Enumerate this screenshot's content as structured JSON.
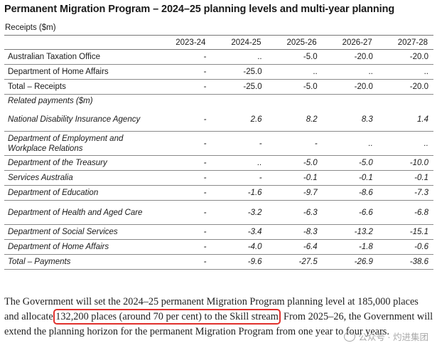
{
  "title": "Permanent Migration Program – 2024–25 planning levels and multi-year planning",
  "receipts_label": "Receipts ($m)",
  "columns": [
    "",
    "2023-24",
    "2024-25",
    "2025-26",
    "2026-27",
    "2027-28"
  ],
  "rows": [
    {
      "label": "Australian Taxation Office",
      "values": [
        "-",
        "..",
        "-5.0",
        "-20.0",
        "-20.0"
      ],
      "style": "single"
    },
    {
      "label": "Department of Home Affairs",
      "values": [
        "-",
        "-25.0",
        "..",
        "..",
        ".."
      ],
      "style": "single"
    },
    {
      "label": "Total – Receipts",
      "values": [
        "-",
        "-25.0",
        "-5.0",
        "-20.0",
        "-20.0"
      ],
      "style": "single"
    },
    {
      "label": "Related payments ($m)",
      "values": [
        "",
        "",
        "",
        "",
        ""
      ],
      "style": "sub italic"
    },
    {
      "label": "National Disability Insurance Agency",
      "values": [
        "-",
        "2.6",
        "8.2",
        "8.3",
        "1.4"
      ],
      "style": "double italic"
    },
    {
      "label": "Department of Employment and Workplace Relations",
      "values": [
        "-",
        "-",
        "-",
        "..",
        ".."
      ],
      "style": "double italic"
    },
    {
      "label": "Department of the Treasury",
      "values": [
        "-",
        "..",
        "-5.0",
        "-5.0",
        "-10.0"
      ],
      "style": "single italic"
    },
    {
      "label": "Services Australia",
      "values": [
        "-",
        "-",
        "-0.1",
        "-0.1",
        "-0.1"
      ],
      "style": "single italic"
    },
    {
      "label": "Department of Education",
      "values": [
        "-",
        "-1.6",
        "-9.7",
        "-8.6",
        "-7.3"
      ],
      "style": "single italic"
    },
    {
      "label": "Department of Health and Aged Care",
      "values": [
        "-",
        "-3.2",
        "-6.3",
        "-6.6",
        "-6.8"
      ],
      "style": "double italic"
    },
    {
      "label": "Department of Social Services",
      "values": [
        "-",
        "-3.4",
        "-8.3",
        "-13.2",
        "-15.1"
      ],
      "style": "single italic"
    },
    {
      "label": "Department of Home Affairs",
      "values": [
        "-",
        "-4.0",
        "-6.4",
        "-1.8",
        "-0.6"
      ],
      "style": "single italic"
    },
    {
      "label": "Total – Payments",
      "values": [
        "-",
        "-9.6",
        "-27.5",
        "-26.9",
        "-38.6"
      ],
      "style": "single italic"
    }
  ],
  "paragraph": {
    "before": "The Government will set the 2024–25 permanent Migration Program planning level at 185,000 places and allocate ",
    "highlighted": "132,200 places (around 70 per cent) to the Skill stream",
    "after": ". From 2025–26, the Government will extend the planning horizon for the permanent Migration Program from one year to four years."
  },
  "watermark": "公众号 · 灼进集团",
  "colors": {
    "highlight": "#e0302c",
    "rule": "#777777"
  }
}
